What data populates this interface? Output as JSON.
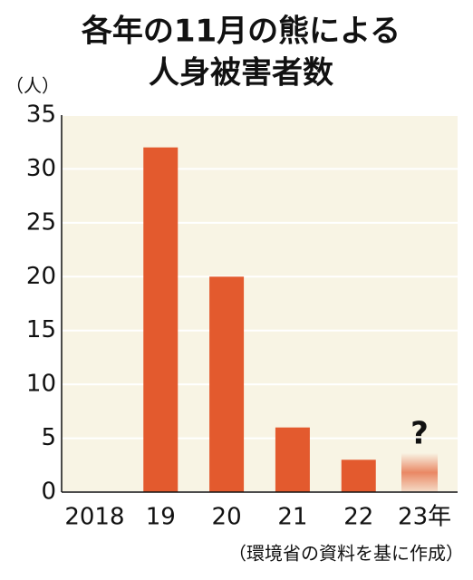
{
  "chart_data": {
    "type": "bar",
    "title": [
      "各年の11月の熊による",
      "人身被害者数"
    ],
    "y_unit": "（人）",
    "categories": [
      "2018",
      "19",
      "20",
      "21",
      "22",
      "23年"
    ],
    "values": [
      0,
      32,
      20,
      6,
      3,
      null
    ],
    "color": "#e35a2e",
    "annotation": "?",
    "source": "（環境省の資料を基に作成）",
    "ylim": [
      0,
      35
    ],
    "yticks": [
      0,
      5,
      10,
      15,
      20,
      25,
      30,
      35
    ],
    "grid": true
  }
}
